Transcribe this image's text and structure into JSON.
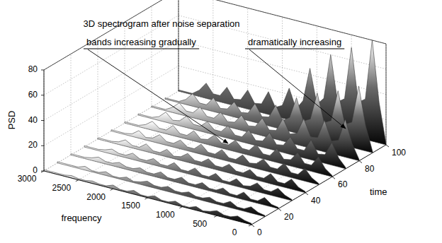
{
  "chart_data": {
    "type": "waterfall",
    "title": "3D spectrogram after noise separation",
    "x_label": "frequency",
    "y_label": "time",
    "z_label": "PSD",
    "annotations": [
      "bands increasing gradually",
      "dramatically increasing"
    ],
    "x": [
      0,
      100,
      200,
      300,
      400,
      500,
      600,
      700,
      800,
      900,
      1000,
      1100,
      1200,
      1300,
      1400,
      1500,
      1600,
      1700,
      1800,
      1900,
      2000,
      2100,
      2200,
      2300,
      2400,
      2500,
      2600,
      2700,
      2800,
      2900,
      3000
    ],
    "y": [
      0,
      10,
      20,
      30,
      40,
      50,
      60,
      70,
      80,
      90,
      100
    ],
    "z": [
      [
        1,
        2,
        4,
        2,
        2,
        4,
        2,
        1,
        3,
        1,
        1,
        3,
        1,
        1,
        3,
        1,
        1,
        3,
        1,
        1,
        3,
        1,
        1,
        2,
        1,
        1,
        2,
        1,
        1,
        1,
        1
      ],
      [
        1,
        2,
        5,
        2,
        2,
        5,
        2,
        2,
        4,
        2,
        2,
        4,
        2,
        2,
        4,
        2,
        2,
        4,
        2,
        1,
        3,
        1,
        1,
        3,
        1,
        1,
        3,
        1,
        1,
        1,
        1
      ],
      [
        1,
        2,
        6,
        2,
        2,
        6,
        2,
        2,
        5,
        2,
        2,
        5,
        2,
        2,
        5,
        2,
        2,
        5,
        2,
        2,
        4,
        2,
        2,
        4,
        2,
        2,
        4,
        2,
        1,
        1,
        1
      ],
      [
        1,
        3,
        7,
        3,
        3,
        7,
        3,
        2,
        6,
        2,
        2,
        6,
        2,
        2,
        6,
        2,
        2,
        6,
        2,
        2,
        5,
        2,
        2,
        5,
        2,
        2,
        4,
        2,
        1,
        1,
        1
      ],
      [
        1,
        3,
        8,
        3,
        3,
        8,
        3,
        3,
        7,
        3,
        3,
        7,
        3,
        3,
        7,
        3,
        3,
        7,
        3,
        2,
        6,
        2,
        2,
        6,
        2,
        2,
        5,
        2,
        1,
        1,
        1
      ],
      [
        1,
        4,
        10,
        4,
        4,
        10,
        4,
        4,
        9,
        4,
        3,
        8,
        3,
        3,
        8,
        3,
        3,
        8,
        3,
        3,
        7,
        3,
        3,
        7,
        3,
        2,
        6,
        2,
        1,
        1,
        1
      ],
      [
        1,
        5,
        13,
        5,
        5,
        12,
        5,
        4,
        11,
        4,
        4,
        10,
        4,
        4,
        9,
        4,
        4,
        9,
        4,
        3,
        8,
        3,
        3,
        8,
        3,
        3,
        7,
        3,
        1,
        1,
        1
      ],
      [
        1,
        7,
        18,
        7,
        6,
        16,
        6,
        6,
        14,
        6,
        5,
        13,
        5,
        4,
        11,
        4,
        4,
        10,
        4,
        4,
        9,
        4,
        4,
        9,
        4,
        3,
        8,
        3,
        1,
        1,
        1
      ],
      [
        1,
        12,
        30,
        12,
        10,
        25,
        10,
        9,
        22,
        9,
        7,
        18,
        7,
        6,
        14,
        6,
        5,
        12,
        5,
        4,
        10,
        4,
        4,
        10,
        4,
        4,
        9,
        4,
        1,
        1,
        1
      ],
      [
        1,
        20,
        50,
        20,
        17,
        42,
        17,
        14,
        36,
        14,
        11,
        28,
        11,
        7,
        18,
        7,
        6,
        15,
        6,
        5,
        12,
        5,
        4,
        11,
        4,
        4,
        10,
        4,
        1,
        1,
        1
      ],
      [
        1,
        32,
        80,
        32,
        28,
        70,
        28,
        24,
        60,
        24,
        18,
        45,
        18,
        10,
        25,
        10,
        7,
        18,
        7,
        6,
        15,
        6,
        5,
        13,
        5,
        5,
        12,
        5,
        1,
        1,
        1
      ]
    ],
    "xlim": [
      0,
      3000
    ],
    "xticks": [
      0,
      500,
      1000,
      1500,
      2000,
      2500,
      3000
    ],
    "ylim": [
      0,
      100
    ],
    "yticks": [
      0,
      20,
      40,
      60,
      80,
      100
    ],
    "zlim": [
      0,
      80
    ],
    "zticks": [
      0,
      20,
      40,
      60,
      80
    ],
    "grid": true
  }
}
